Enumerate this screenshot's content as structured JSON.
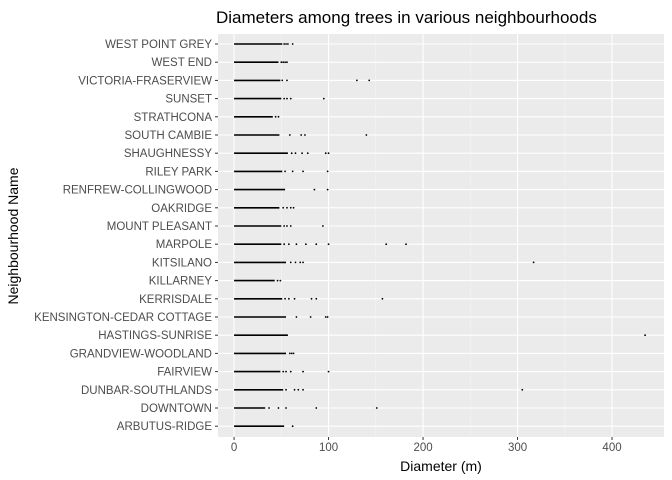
{
  "chart_data": {
    "type": "boxplot",
    "title": "Diameters among trees in various neighbourhoods",
    "xlabel": "Diameter (m)",
    "ylabel": "Neighbourhood Name",
    "xlim": [
      -17,
      455
    ],
    "xticks": [
      0,
      100,
      200,
      300,
      400
    ],
    "grid": true,
    "legend": "none",
    "colors": {
      "panel": "#ebebeb",
      "grid_major": "#ffffff",
      "grid_minor": "#f5f5f5",
      "mark": "#000000",
      "tick_label": "#4d4d4d"
    },
    "categories": [
      "WEST POINT GREY",
      "WEST END",
      "VICTORIA-FRASERVIEW",
      "SUNSET",
      "STRATHCONA",
      "SOUTH CAMBIE",
      "SHAUGHNESSY",
      "RILEY PARK",
      "RENFREW-COLLINGWOOD",
      "OAKRIDGE",
      "MOUNT PLEASANT",
      "MARPOLE",
      "KITSILANO",
      "KILLARNEY",
      "KERRISDALE",
      "KENSINGTON-CEDAR COTTAGE",
      "HASTINGS-SUNRISE",
      "GRANDVIEW-WOODLAND",
      "FAIRVIEW",
      "DUNBAR-SOUTHLANDS",
      "DOWNTOWN",
      "ARBUTUS-RIDGE"
    ],
    "series": [
      {
        "category": "WEST POINT GREY",
        "whisker_low": 0,
        "whisker_high": 51,
        "outliers": [
          53,
          55,
          57,
          62
        ]
      },
      {
        "category": "WEST END",
        "whisker_low": 0,
        "whisker_high": 47,
        "outliers": [
          50,
          52,
          54,
          56
        ]
      },
      {
        "category": "VICTORIA-FRASERVIEW",
        "whisker_low": 0,
        "whisker_high": 49,
        "outliers": [
          51,
          56,
          130,
          143
        ]
      },
      {
        "category": "SUNSET",
        "whisker_low": 0,
        "whisker_high": 50,
        "outliers": [
          53,
          56,
          60,
          95
        ]
      },
      {
        "category": "STRATHCONA",
        "whisker_low": 0,
        "whisker_high": 41,
        "outliers": [
          44,
          47
        ]
      },
      {
        "category": "SOUTH CAMBIE",
        "whisker_low": 0,
        "whisker_high": 48,
        "outliers": [
          59,
          71,
          75,
          140
        ]
      },
      {
        "category": "SHAUGHNESSY",
        "whisker_low": 0,
        "whisker_high": 57,
        "outliers": [
          61,
          65,
          72,
          78,
          97,
          100
        ]
      },
      {
        "category": "RILEY PARK",
        "whisker_low": 0,
        "whisker_high": 51,
        "outliers": [
          54,
          62,
          73,
          99
        ]
      },
      {
        "category": "RENFREW-COLLINGWOOD",
        "whisker_low": 0,
        "whisker_high": 54,
        "outliers": [
          85,
          99
        ]
      },
      {
        "category": "OAKRIDGE",
        "whisker_low": 0,
        "whisker_high": 48,
        "outliers": [
          52,
          56,
          60,
          63
        ]
      },
      {
        "category": "MOUNT PLEASANT",
        "whisker_low": 0,
        "whisker_high": 50,
        "outliers": [
          53,
          56,
          60,
          94
        ]
      },
      {
        "category": "MARPOLE",
        "whisker_low": 0,
        "whisker_high": 50,
        "outliers": [
          53,
          58,
          66,
          76,
          87,
          100,
          161,
          182
        ]
      },
      {
        "category": "KITSILANO",
        "whisker_low": 0,
        "whisker_high": 55,
        "outliers": [
          60,
          65,
          70,
          73,
          317
        ]
      },
      {
        "category": "KILLARNEY",
        "whisker_low": 0,
        "whisker_high": 43,
        "outliers": [
          46,
          49
        ]
      },
      {
        "category": "KERRISDALE",
        "whisker_low": 0,
        "whisker_high": 51,
        "outliers": [
          54,
          58,
          64,
          82,
          87,
          157
        ]
      },
      {
        "category": "KENSINGTON-CEDAR COTTAGE",
        "whisker_low": 0,
        "whisker_high": 55,
        "outliers": [
          66,
          81,
          97,
          99
        ]
      },
      {
        "category": "HASTINGS-SUNRISE",
        "whisker_low": 0,
        "whisker_high": 57,
        "outliers": [
          435
        ]
      },
      {
        "category": "GRANDVIEW-WOODLAND",
        "whisker_low": 0,
        "whisker_high": 55,
        "outliers": [
          59,
          61,
          63
        ]
      },
      {
        "category": "FAIRVIEW",
        "whisker_low": 0,
        "whisker_high": 49,
        "outliers": [
          52,
          55,
          60,
          73,
          100
        ]
      },
      {
        "category": "DUNBAR-SOUTHLANDS",
        "whisker_low": 0,
        "whisker_high": 52,
        "outliers": [
          55,
          64,
          68,
          73,
          305
        ]
      },
      {
        "category": "DOWNTOWN",
        "whisker_low": 0,
        "whisker_high": 33,
        "outliers": [
          37,
          47,
          55,
          87,
          151
        ]
      },
      {
        "category": "ARBUTUS-RIDGE",
        "whisker_low": 0,
        "whisker_high": 53,
        "outliers": [
          62
        ]
      }
    ]
  }
}
